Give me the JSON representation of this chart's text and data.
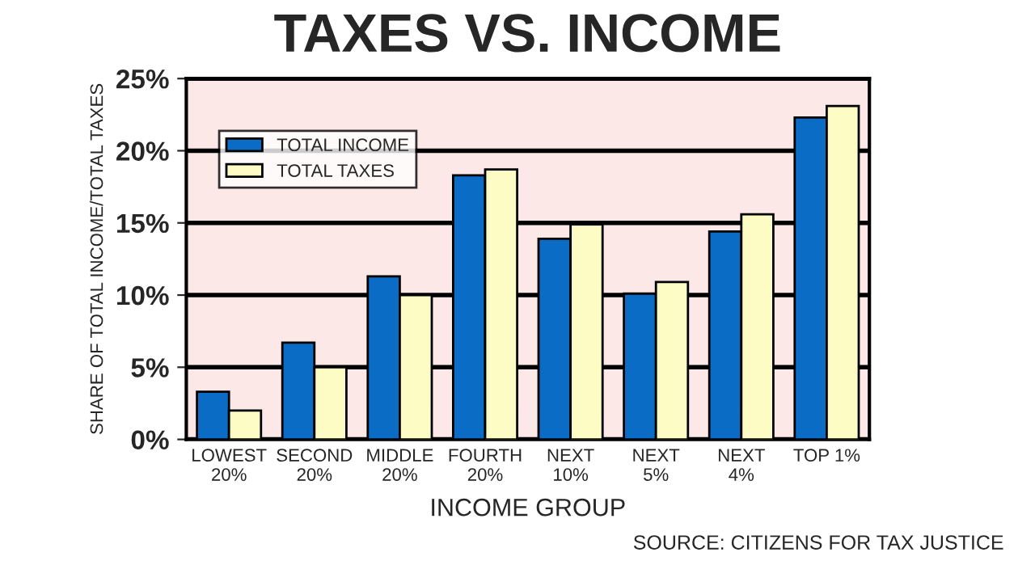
{
  "chart_data": {
    "type": "bar",
    "title": "TAXES VS. INCOME",
    "categories": [
      "LOWEST\n20%",
      "SECOND\n20%",
      "MIDDLE\n20%",
      "FOURTH\n20%",
      "NEXT\n10%",
      "NEXT\n5%",
      "NEXT\n4%",
      "TOP 1%"
    ],
    "series": [
      {
        "name": "TOTAL INCOME",
        "color": "#0a6cc4",
        "values": [
          3.3,
          6.7,
          11.3,
          18.3,
          13.9,
          10.1,
          14.4,
          22.3
        ]
      },
      {
        "name": "TOTAL TAXES",
        "color": "#fdfcc4",
        "values": [
          2.0,
          5.0,
          10.0,
          18.7,
          14.9,
          10.9,
          15.6,
          23.1
        ]
      }
    ],
    "xlabel": "INCOME GROUP",
    "ylabel": "SHARE OF TOTAL INCOME/TOTAL TAXES",
    "ylim": [
      0,
      25
    ],
    "yticks": [
      {
        "value": 0,
        "label": "0%"
      },
      {
        "value": 5,
        "label": "5%"
      },
      {
        "value": 10,
        "label": "10%"
      },
      {
        "value": 15,
        "label": "15%"
      },
      {
        "value": 20,
        "label": "20%"
      },
      {
        "value": 25,
        "label": "25%"
      }
    ],
    "grid": "y",
    "legend": "top left",
    "annotations": [
      "SOURCE: CITIZENS FOR TAX JUSTICE"
    ]
  }
}
